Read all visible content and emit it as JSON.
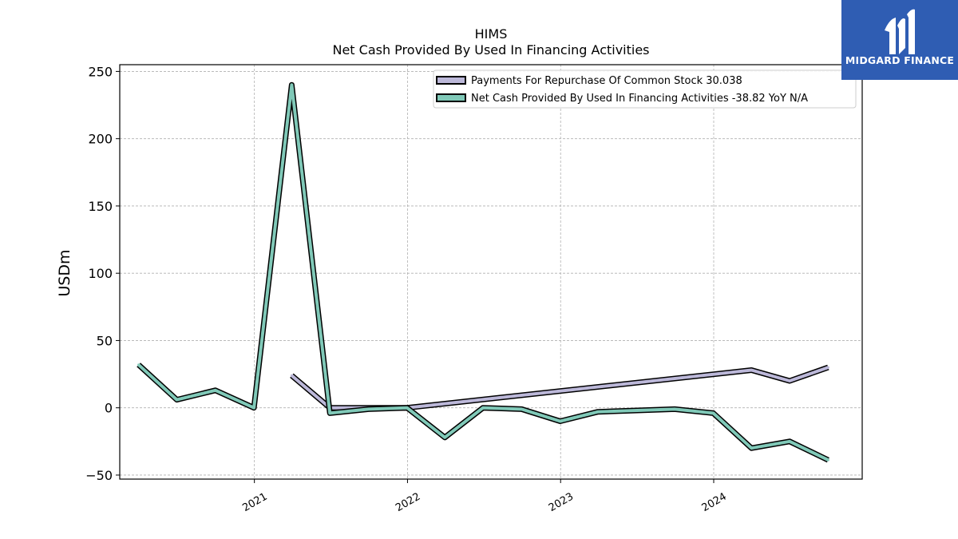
{
  "chart_data": {
    "type": "line",
    "title": "HIMS",
    "subtitle": "Net Cash Provided By Used In Financing Activities",
    "ylabel": "USDm",
    "xlabel": "",
    "ylim": [
      -53,
      255
    ],
    "xlim": [
      "2020-02-15",
      "2024-12-20"
    ],
    "grid": true,
    "legend_position": "top-right",
    "x_ticks": [
      {
        "date": "2021-01-01",
        "label": "2021"
      },
      {
        "date": "2022-01-01",
        "label": "2022"
      },
      {
        "date": "2023-01-01",
        "label": "2023"
      },
      {
        "date": "2024-01-01",
        "label": "2024"
      }
    ],
    "y_ticks": [
      -50,
      0,
      50,
      100,
      150,
      200,
      250
    ],
    "series": [
      {
        "name": "Payments For Repurchase Of Common Stock  30.038",
        "color": "#bcb8d9",
        "points": [
          {
            "x": "2021-03-31",
            "y": 24
          },
          {
            "x": "2021-06-30",
            "y": 0
          },
          {
            "x": "2021-12-31",
            "y": 0
          },
          {
            "x": "2024-03-31",
            "y": 28
          },
          {
            "x": "2024-06-30",
            "y": 20
          },
          {
            "x": "2024-09-30",
            "y": 30.038
          }
        ]
      },
      {
        "name": "Net Cash Provided By Used In Financing Activities  -38.82 YoY N/A",
        "color": "#80c9b8",
        "points": [
          {
            "x": "2020-03-31",
            "y": 32
          },
          {
            "x": "2020-06-30",
            "y": 6
          },
          {
            "x": "2020-09-30",
            "y": 13
          },
          {
            "x": "2020-12-31",
            "y": 0
          },
          {
            "x": "2021-03-31",
            "y": 240
          },
          {
            "x": "2021-06-30",
            "y": -4
          },
          {
            "x": "2021-09-30",
            "y": -1
          },
          {
            "x": "2021-12-31",
            "y": 0
          },
          {
            "x": "2022-03-31",
            "y": -22
          },
          {
            "x": "2022-06-30",
            "y": 0
          },
          {
            "x": "2022-09-30",
            "y": -1
          },
          {
            "x": "2022-12-31",
            "y": -10
          },
          {
            "x": "2023-03-31",
            "y": -3
          },
          {
            "x": "2023-09-30",
            "y": -1
          },
          {
            "x": "2023-12-31",
            "y": -4
          },
          {
            "x": "2024-03-31",
            "y": -30
          },
          {
            "x": "2024-06-30",
            "y": -25
          },
          {
            "x": "2024-09-30",
            "y": -38.82
          }
        ]
      }
    ]
  },
  "logo": {
    "text": "MIDGARD FINANCE",
    "background": "#2f5db3"
  }
}
